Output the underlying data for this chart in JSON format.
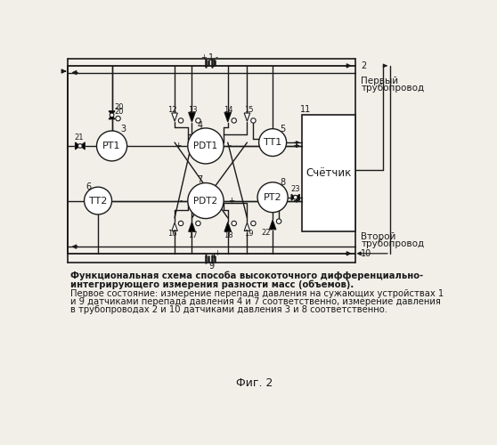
{
  "title": "Фиг. 2",
  "caption_bold": "Функциональная схема способа высокоточного дифференциально-\nинтегрирующего измерения разности масс (объемов).",
  "caption_normal": "Первое состояние: измерение перепада давления на сужающих устройствах 1\nи 9 датчиками перепада давления 4 и 7 соответственно, измерение давления\nв трубопроводах 2 и 10 датчиками давления 3 и 8 соответственно.",
  "bg_color": "#f2efe9",
  "line_color": "#1a1a1a"
}
